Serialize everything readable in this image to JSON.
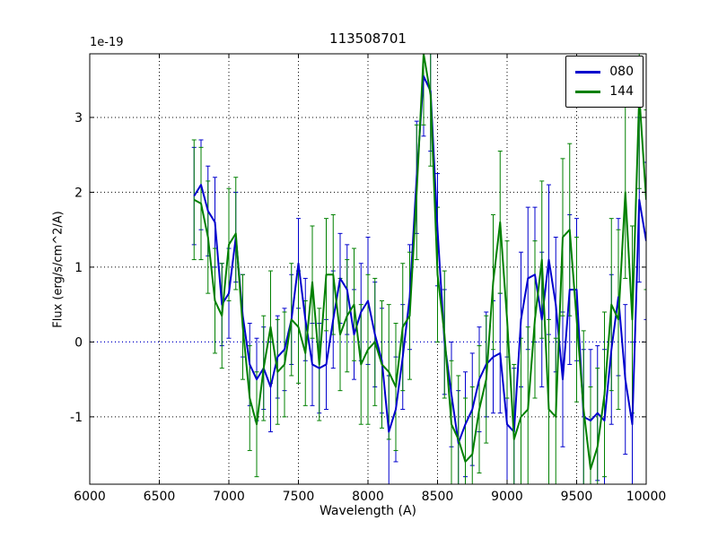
{
  "chart_data": {
    "type": "line",
    "title": "113508701",
    "xlabel": "Wavelength (A)",
    "ylabel": "Flux (erg/s/cm^2/A)",
    "y_offset_text": "1e-19",
    "xlim": [
      6000,
      10000
    ],
    "ylim": [
      -1.9,
      3.85
    ],
    "x_ticks": [
      6000,
      6500,
      7000,
      7500,
      8000,
      8500,
      9000,
      9500,
      10000
    ],
    "y_ticks": [
      -1,
      0,
      1,
      2,
      3
    ],
    "grid": true,
    "grid_style": "dotted",
    "legend_position": "upper right",
    "zero_line": {
      "y": 0,
      "color": "#0000cd",
      "style": "dotted"
    },
    "x": [
      6750,
      6800,
      6850,
      6900,
      6950,
      7000,
      7050,
      7100,
      7150,
      7200,
      7250,
      7300,
      7350,
      7400,
      7450,
      7500,
      7550,
      7600,
      7650,
      7700,
      7750,
      7800,
      7850,
      7900,
      7950,
      8000,
      8050,
      8100,
      8150,
      8200,
      8250,
      8300,
      8350,
      8400,
      8450,
      8500,
      8550,
      8600,
      8650,
      8700,
      8750,
      8800,
      8850,
      8900,
      8950,
      9000,
      9050,
      9100,
      9150,
      9200,
      9250,
      9300,
      9350,
      9400,
      9450,
      9500,
      9550,
      9600,
      9650,
      9700,
      9750,
      9800,
      9850,
      9900,
      9950,
      10000
    ],
    "series": [
      {
        "name": "080",
        "color": "#0000cd",
        "values": [
          1.95,
          2.1,
          1.75,
          1.6,
          0.5,
          0.65,
          1.4,
          0.35,
          -0.3,
          -0.5,
          -0.35,
          -0.6,
          -0.2,
          -0.1,
          0.3,
          1.05,
          0.3,
          -0.3,
          -0.35,
          -0.3,
          0.3,
          0.85,
          0.7,
          0.1,
          0.4,
          0.55,
          0.1,
          -0.25,
          -1.2,
          -0.9,
          -0.2,
          0.6,
          2.2,
          3.55,
          3.35,
          1.5,
          0.0,
          -0.7,
          -1.35,
          -1.1,
          -0.9,
          -0.5,
          -0.3,
          -0.2,
          -0.15,
          -1.1,
          -1.2,
          0.3,
          0.85,
          0.9,
          0.3,
          1.1,
          0.5,
          -0.5,
          0.7,
          0.7,
          -1.0,
          -1.05,
          -0.95,
          -1.05,
          -0.1,
          0.6,
          -0.5,
          -1.1,
          1.9,
          1.35
        ],
        "errors": [
          0.65,
          0.6,
          0.6,
          0.6,
          0.55,
          0.6,
          0.6,
          0.55,
          0.55,
          0.55,
          0.55,
          0.6,
          0.55,
          0.55,
          0.6,
          0.6,
          0.55,
          0.55,
          0.6,
          0.6,
          0.65,
          0.6,
          0.6,
          0.6,
          0.65,
          0.85,
          0.7,
          0.7,
          0.75,
          0.7,
          0.7,
          0.7,
          0.75,
          0.8,
          0.8,
          0.75,
          0.7,
          0.7,
          0.7,
          0.7,
          0.75,
          0.7,
          0.7,
          0.75,
          0.8,
          0.9,
          0.85,
          0.9,
          0.95,
          0.9,
          0.9,
          1.0,
          0.9,
          0.9,
          1.0,
          0.95,
          0.9,
          0.95,
          0.9,
          0.95,
          1.0,
          1.05,
          1.0,
          1.1,
          1.1,
          1.05
        ]
      },
      {
        "name": "144",
        "color": "#008000",
        "values": [
          1.9,
          1.85,
          1.4,
          0.55,
          0.35,
          1.3,
          1.45,
          0.2,
          -0.75,
          -1.1,
          -0.35,
          0.2,
          -0.4,
          -0.3,
          0.3,
          0.2,
          -0.15,
          0.8,
          -0.3,
          0.9,
          0.9,
          0.1,
          0.35,
          0.5,
          -0.3,
          -0.1,
          0.0,
          -0.3,
          -0.4,
          -0.6,
          0.2,
          0.35,
          2.0,
          3.85,
          3.3,
          0.9,
          0.1,
          -1.1,
          -1.3,
          -1.6,
          -1.5,
          -0.9,
          -0.5,
          0.8,
          1.6,
          0.3,
          -1.3,
          -1.0,
          -0.9,
          0.3,
          1.1,
          -0.9,
          -1.0,
          1.4,
          1.5,
          0.3,
          -0.9,
          -1.7,
          -1.4,
          -0.7,
          0.5,
          0.3,
          2.0,
          0.3,
          3.3,
          1.9
        ],
        "errors": [
          0.8,
          0.75,
          0.75,
          0.7,
          0.7,
          0.75,
          0.75,
          0.7,
          0.7,
          0.7,
          0.7,
          0.75,
          0.7,
          0.7,
          0.75,
          0.75,
          0.7,
          0.75,
          0.75,
          0.75,
          0.8,
          0.75,
          0.75,
          0.75,
          0.8,
          1.0,
          0.85,
          0.85,
          0.9,
          0.85,
          0.85,
          0.85,
          0.9,
          0.95,
          0.95,
          0.9,
          0.85,
          0.85,
          0.85,
          0.85,
          0.9,
          0.85,
          0.85,
          0.9,
          0.95,
          1.05,
          1.0,
          1.05,
          1.1,
          1.05,
          1.05,
          1.2,
          1.05,
          1.05,
          1.15,
          1.1,
          1.05,
          1.1,
          1.05,
          1.1,
          1.15,
          1.2,
          1.15,
          1.25,
          1.25,
          1.2
        ]
      }
    ]
  }
}
